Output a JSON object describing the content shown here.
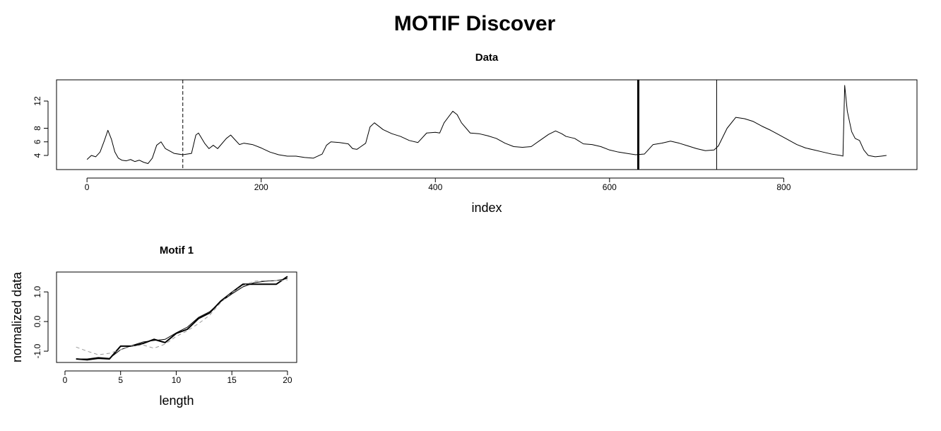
{
  "title": "MOTIF Discover",
  "chart_data": [
    {
      "type": "line",
      "title": "Data",
      "xlabel": "index",
      "xlim": [
        -35,
        953
      ],
      "ylim": [
        1.92,
        15.12
      ],
      "xticks": [
        0,
        200,
        400,
        600,
        800
      ],
      "yticks": [
        4,
        6,
        8,
        12
      ],
      "x": [
        0,
        5,
        10,
        15,
        20,
        24,
        28,
        32,
        36,
        40,
        45,
        50,
        55,
        60,
        65,
        70,
        75,
        80,
        85,
        90,
        100,
        110,
        120,
        125,
        128,
        135,
        140,
        145,
        150,
        160,
        165,
        170,
        175,
        180,
        190,
        200,
        210,
        220,
        230,
        240,
        250,
        260,
        270,
        275,
        280,
        290,
        300,
        305,
        310,
        320,
        325,
        330,
        340,
        350,
        360,
        370,
        380,
        390,
        400,
        405,
        410,
        420,
        425,
        430,
        440,
        450,
        460,
        470,
        480,
        490,
        500,
        510,
        520,
        530,
        538,
        545,
        550,
        560,
        570,
        580,
        590,
        600,
        610,
        620,
        630,
        640,
        650,
        660,
        670,
        680,
        690,
        700,
        710,
        720,
        725,
        735,
        745,
        755,
        765,
        775,
        785,
        795,
        805,
        815,
        825,
        835,
        845,
        855,
        865,
        868,
        870,
        873,
        878,
        882,
        887,
        892,
        897,
        905,
        912,
        918
      ],
      "values": [
        3.4,
        4.0,
        3.8,
        4.5,
        6.2,
        7.7,
        6.4,
        4.5,
        3.6,
        3.3,
        3.2,
        3.4,
        3.1,
        3.3,
        3.0,
        2.8,
        3.6,
        5.5,
        6.0,
        5.0,
        4.3,
        4.1,
        4.3,
        7.0,
        7.3,
        5.8,
        5.0,
        5.5,
        5.0,
        6.5,
        7.0,
        6.3,
        5.6,
        5.8,
        5.6,
        5.1,
        4.5,
        4.1,
        3.9,
        3.9,
        3.7,
        3.6,
        4.2,
        5.5,
        6.0,
        5.9,
        5.7,
        5.0,
        4.9,
        5.8,
        8.2,
        8.8,
        7.8,
        7.2,
        6.8,
        6.2,
        5.9,
        7.3,
        7.4,
        7.3,
        8.8,
        10.5,
        10.0,
        8.8,
        7.3,
        7.2,
        6.9,
        6.5,
        5.8,
        5.3,
        5.2,
        5.3,
        6.2,
        7.1,
        7.6,
        7.2,
        6.8,
        6.5,
        5.7,
        5.6,
        5.3,
        4.8,
        4.5,
        4.3,
        4.1,
        4.2,
        5.6,
        5.8,
        6.1,
        5.8,
        5.4,
        5.0,
        4.7,
        4.8,
        5.4,
        8.0,
        9.6,
        9.4,
        9.0,
        8.3,
        7.7,
        7.0,
        6.3,
        5.6,
        5.1,
        4.8,
        4.5,
        4.2,
        4.0,
        3.9,
        14.3,
        10.5,
        7.5,
        6.5,
        6.2,
        4.8,
        4.0,
        3.8,
        3.9,
        4.0
      ],
      "color": "#000000",
      "vlines": [
        {
          "x": 110,
          "style": "dashed",
          "width": 1
        },
        {
          "x": 633,
          "style": "solid",
          "width": 3
        },
        {
          "x": 723,
          "style": "solid",
          "width": 1
        }
      ]
    },
    {
      "type": "line",
      "title": "Motif 1",
      "xlabel": "length",
      "ylabel": "normalized data",
      "xlim": [
        -0.76,
        20.83
      ],
      "ylim": [
        -1.38,
        1.67
      ],
      "xticks": [
        0,
        5,
        10,
        15,
        20
      ],
      "yticks": [
        {
          "value": -1,
          "label": "-1.0"
        },
        {
          "value": 0,
          "label": "0.0"
        },
        {
          "value": 1,
          "label": "1.0"
        }
      ],
      "x": [
        1,
        2,
        3,
        4,
        5,
        6,
        7,
        8,
        9,
        10,
        11,
        12,
        13,
        14,
        15,
        16,
        17,
        18,
        19,
        20
      ],
      "series": [
        {
          "color": "#000000",
          "width": 2,
          "style": "solid",
          "values": [
            -1.26,
            -1.29,
            -1.24,
            -1.26,
            -0.83,
            -0.83,
            -0.74,
            -0.6,
            -0.71,
            -0.4,
            -0.26,
            0.1,
            0.29,
            0.69,
            0.98,
            1.26,
            1.26,
            1.26,
            1.26,
            1.52
          ]
        },
        {
          "color": "#000000",
          "width": 1,
          "style": "solid",
          "values": [
            -1.26,
            -1.26,
            -1.21,
            -1.24,
            -0.95,
            -0.81,
            -0.69,
            -0.64,
            -0.6,
            -0.38,
            -0.19,
            0.14,
            0.33,
            0.67,
            0.93,
            1.17,
            1.31,
            1.36,
            1.38,
            1.45
          ]
        },
        {
          "color": "#999999",
          "width": 1,
          "style": "dashed",
          "values": [
            -0.86,
            -1.0,
            -1.12,
            -1.07,
            -0.95,
            -0.83,
            -0.79,
            -0.9,
            -0.76,
            -0.5,
            -0.31,
            -0.07,
            0.21,
            0.64,
            0.98,
            1.21,
            1.36,
            1.38,
            1.38,
            1.4
          ]
        }
      ]
    }
  ]
}
